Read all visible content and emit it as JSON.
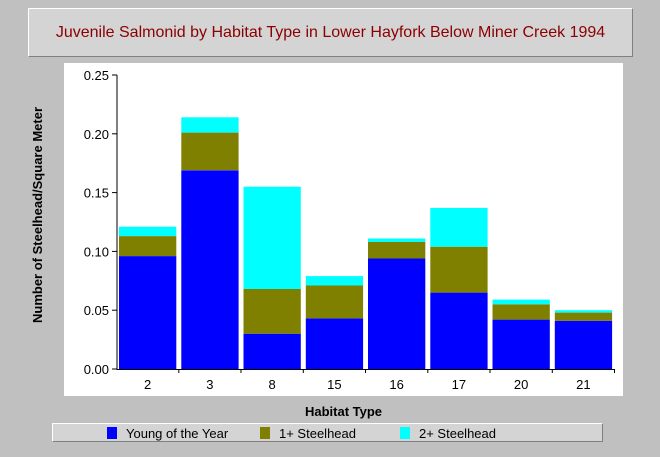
{
  "chart_data": {
    "type": "bar",
    "stacked": true,
    "title": "Juvenile Salmonid by Habitat Type in Lower Hayfork Below Miner Creek 1994",
    "xlabel": "Habitat Type",
    "ylabel": "Number of Steelhead/Square Meter",
    "ylim": [
      0,
      0.25
    ],
    "yticks": [
      "0.00",
      "0.05",
      "0.10",
      "0.15",
      "0.20",
      "0.25"
    ],
    "grid": false,
    "legend_position": "bottom",
    "categories": [
      "2",
      "3",
      "8",
      "15",
      "16",
      "17",
      "20",
      "21"
    ],
    "series": [
      {
        "name": "Young of the Year",
        "color": "#0000ff",
        "values": [
          0.096,
          0.169,
          0.03,
          0.043,
          0.094,
          0.065,
          0.042,
          0.041
        ]
      },
      {
        "name": "1+ Steelhead",
        "color": "#808000",
        "values": [
          0.017,
          0.032,
          0.038,
          0.028,
          0.014,
          0.039,
          0.013,
          0.007
        ]
      },
      {
        "name": "2+ Steelhead",
        "color": "#00ffff",
        "values": [
          0.008,
          0.013,
          0.087,
          0.008,
          0.003,
          0.033,
          0.004,
          0.002
        ]
      }
    ]
  }
}
